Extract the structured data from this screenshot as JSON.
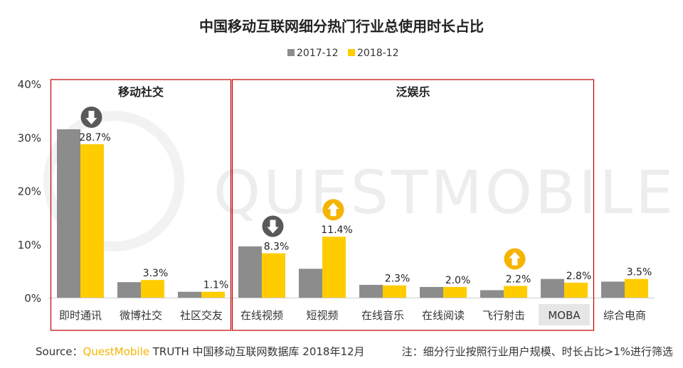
{
  "chart_data": {
    "type": "bar",
    "title": "中国移动互联网细分热门行业总使用时长占比",
    "series": [
      {
        "name": "2017-12",
        "values": [
          31.5,
          2.9,
          1.1,
          9.6,
          5.4,
          2.4,
          2.0,
          1.4,
          3.5,
          3.0
        ]
      },
      {
        "name": "2018-12",
        "values": [
          28.7,
          3.3,
          1.1,
          8.3,
          11.4,
          2.3,
          2.0,
          2.2,
          2.8,
          3.5
        ]
      }
    ],
    "series_colors": [
      "#8C8C8C",
      "#FFCC00"
    ],
    "categories": [
      "即时通讯",
      "微博社交",
      "社区交友",
      "在线视频",
      "短视频",
      "在线音乐",
      "在线阅读",
      "飞行射击",
      "MOBA",
      "综合电商"
    ],
    "data_labels": [
      "28.7%",
      "3.3%",
      "1.1%",
      "8.3%",
      "11.4%",
      "2.3%",
      "2.0%",
      "2.2%",
      "2.8%",
      "3.5%"
    ],
    "y_ticks": [
      "0%",
      "10%",
      "20%",
      "30%",
      "40%"
    ],
    "ylim": [
      0,
      40
    ],
    "legend_position": "top-center",
    "groups": [
      {
        "title": "移动社交",
        "range": [
          0,
          2
        ]
      },
      {
        "title": "泛娱乐",
        "range": [
          3,
          8
        ]
      }
    ],
    "arrows": [
      {
        "index": 0,
        "direction": "down",
        "color": "#595959"
      },
      {
        "index": 3,
        "direction": "down",
        "color": "#595959"
      },
      {
        "index": 4,
        "direction": "up",
        "color": "#F5B400"
      },
      {
        "index": 7,
        "direction": "up",
        "color": "#F5B400"
      }
    ],
    "highlighted_category": "MOBA",
    "group_border_color": "#C00000",
    "watermark": "QUESTMOBILE"
  },
  "footer": {
    "source_prefix": "Source：",
    "brand": "QuestMobile",
    "source_rest": " TRUTH 中国移动互联网数据库 2018年12月",
    "note": "注：细分行业按照行业用户规模、时长占比>1%进行筛选"
  }
}
